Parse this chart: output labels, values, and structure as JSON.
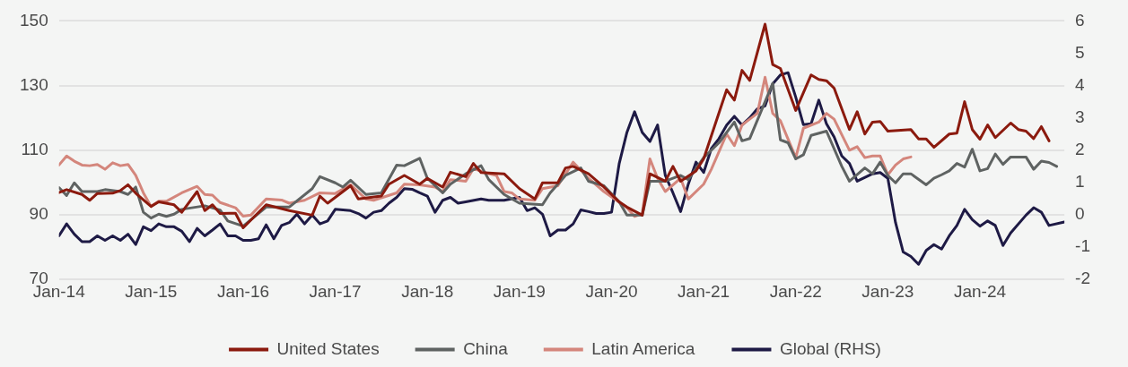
{
  "chart_data": {
    "type": "line",
    "xlim": [
      "2014-01",
      "2024-12"
    ],
    "xticks": [
      {
        "value": "2014-01",
        "label": "Jan-14"
      },
      {
        "value": "2015-01",
        "label": "Jan-15"
      },
      {
        "value": "2016-01",
        "label": "Jan-16"
      },
      {
        "value": "2017-01",
        "label": "Jan-17"
      },
      {
        "value": "2018-01",
        "label": "Jan-18"
      },
      {
        "value": "2019-01",
        "label": "Jan-19"
      },
      {
        "value": "2020-01",
        "label": "Jan-20"
      },
      {
        "value": "2021-01",
        "label": "Jan-21"
      },
      {
        "value": "2022-01",
        "label": "Jan-22"
      },
      {
        "value": "2023-01",
        "label": "Jan-23"
      },
      {
        "value": "2024-01",
        "label": "Jan-24"
      }
    ],
    "ylim": [
      70,
      150
    ],
    "yticks": [
      70,
      90,
      110,
      130,
      150
    ],
    "y2lim": [
      -2,
      6
    ],
    "y2ticks": [
      -2,
      -1,
      0,
      1,
      2,
      3,
      4,
      5,
      6
    ],
    "grid": "y",
    "legend": "bottom",
    "marker": "none",
    "line_style": "solid",
    "series": [
      {
        "name": "United States",
        "color": "#8b1a0e",
        "x": [
          "2014-01",
          "2014-02",
          "2014-04",
          "2014-05",
          "2014-06",
          "2014-08",
          "2014-09",
          "2014-10",
          "2014-11",
          "2015-01",
          "2015-02",
          "2015-04",
          "2015-05",
          "2015-07",
          "2015-08",
          "2015-09",
          "2015-10",
          "2015-12",
          "2016-01",
          "2016-04",
          "2016-07",
          "2016-10",
          "2016-11",
          "2016-12",
          "2017-03",
          "2017-04",
          "2017-07",
          "2017-08",
          "2017-10",
          "2017-12",
          "2018-01",
          "2018-03",
          "2018-04",
          "2018-06",
          "2018-07",
          "2018-08",
          "2018-11",
          "2019-01",
          "2019-03",
          "2019-04",
          "2019-06",
          "2019-07",
          "2019-08",
          "2019-10",
          "2019-12",
          "2020-02",
          "2020-03",
          "2020-05",
          "2020-06",
          "2020-08",
          "2020-09",
          "2020-10",
          "2020-12",
          "2021-01",
          "2021-04",
          "2021-05",
          "2021-06",
          "2021-07",
          "2021-09",
          "2021-10",
          "2021-11",
          "2022-01",
          "2022-03",
          "2022-04",
          "2022-05",
          "2022-06",
          "2022-08",
          "2022-09",
          "2022-10",
          "2022-11",
          "2022-12",
          "2023-01",
          "2023-04",
          "2023-05",
          "2023-06",
          "2023-07",
          "2023-09",
          "2023-10",
          "2023-11",
          "2023-12",
          "2024-01",
          "2024-02",
          "2024-03",
          "2024-05",
          "2024-06",
          "2024-07",
          "2024-08",
          "2024-09",
          "2024-10"
        ],
        "values": [
          96.9,
          97.8,
          96.3,
          94.5,
          96.6,
          96.7,
          97.5,
          99.3,
          96.7,
          92.6,
          94,
          93.1,
          90.8,
          97.2,
          91.3,
          93.1,
          90.4,
          90.5,
          86,
          93.1,
          91.3,
          89.9,
          95.8,
          93.6,
          99,
          94.9,
          95.8,
          99.5,
          102.2,
          99.5,
          101.3,
          98.6,
          103.2,
          101.8,
          105.9,
          103.1,
          102.7,
          98.1,
          94.9,
          99.9,
          99.9,
          104.5,
          105,
          102.7,
          98.6,
          94,
          92.4,
          89.9,
          102.7,
          100.4,
          105,
          100.4,
          103.6,
          107.3,
          128.7,
          125.5,
          134.7,
          131.6,
          149,
          136.5,
          135.3,
          122.3,
          133.3,
          131.9,
          131.5,
          129.2,
          116.4,
          121.9,
          115,
          118.7,
          118.9,
          115.9,
          116.4,
          113.5,
          113.5,
          110.9,
          115,
          115.3,
          125,
          116.4,
          113.4,
          117.8,
          113.9,
          118.4,
          116.4,
          115.9,
          113.6,
          117.3,
          112.9
        ]
      },
      {
        "name": "China",
        "color": "#5f6362",
        "x": [
          "2014-01",
          "2014-02",
          "2014-03",
          "2014-04",
          "2014-06",
          "2014-07",
          "2014-09",
          "2014-10",
          "2014-11",
          "2014-12",
          "2015-01",
          "2015-02",
          "2015-03",
          "2015-04",
          "2015-05",
          "2015-08",
          "2015-10",
          "2015-11",
          "2016-01",
          "2016-04",
          "2016-07",
          "2016-10",
          "2016-11",
          "2017-01",
          "2017-02",
          "2017-03",
          "2017-05",
          "2017-07",
          "2017-09",
          "2017-10",
          "2017-12",
          "2018-01",
          "2018-03",
          "2018-04",
          "2018-06",
          "2018-08",
          "2018-09",
          "2018-11",
          "2019-01",
          "2019-04",
          "2019-05",
          "2019-07",
          "2019-09",
          "2019-10",
          "2019-12",
          "2020-02",
          "2020-03",
          "2020-05",
          "2020-06",
          "2020-08",
          "2020-10",
          "2020-11",
          "2021-01",
          "2021-03",
          "2021-05",
          "2021-06",
          "2021-07",
          "2021-10",
          "2021-11",
          "2021-12",
          "2022-01",
          "2022-02",
          "2022-03",
          "2022-05",
          "2022-07",
          "2022-08",
          "2022-10",
          "2022-11",
          "2022-12",
          "2023-01",
          "2023-02",
          "2023-03",
          "2023-04",
          "2023-06",
          "2023-07",
          "2023-08",
          "2023-09",
          "2023-10",
          "2023-11",
          "2023-12",
          "2024-01",
          "2024-02",
          "2024-03",
          "2024-04",
          "2024-05",
          "2024-07",
          "2024-08",
          "2024-09",
          "2024-10",
          "2024-11"
        ],
        "values": [
          98.4,
          96,
          99.9,
          97.2,
          97.2,
          97.8,
          97.2,
          96.3,
          98.6,
          90.8,
          89,
          90.2,
          89.5,
          90.2,
          91.7,
          92.8,
          91.5,
          88.1,
          86.5,
          92.4,
          92.4,
          98.1,
          101.8,
          99.9,
          98.6,
          100.7,
          96.3,
          96.8,
          105.4,
          105.2,
          107.5,
          101.3,
          96.8,
          99.5,
          102.7,
          105.2,
          100.9,
          96.3,
          93.6,
          93.1,
          96.8,
          102.2,
          104.5,
          100.4,
          99,
          94,
          89.9,
          89.9,
          100.4,
          100.4,
          102.2,
          100.9,
          107.7,
          112.3,
          118.7,
          112.9,
          113.6,
          130.7,
          113.2,
          112.3,
          107.3,
          108.6,
          114.6,
          115.9,
          105,
          100.4,
          104.5,
          102.7,
          106.3,
          102.2,
          99.9,
          102.7,
          102.7,
          99.3,
          101.3,
          102.4,
          103.6,
          105.9,
          104.8,
          110.3,
          103.6,
          104.3,
          108.8,
          105.6,
          107.9,
          107.9,
          104.1,
          106.6,
          106.2,
          105
        ]
      },
      {
        "name": "Latin America",
        "color": "#d4867c",
        "x": [
          "2014-01",
          "2014-02",
          "2014-03",
          "2014-04",
          "2014-05",
          "2014-06",
          "2014-07",
          "2014-08",
          "2014-09",
          "2014-10",
          "2014-11",
          "2014-12",
          "2015-01",
          "2015-02",
          "2015-03",
          "2015-05",
          "2015-07",
          "2015-08",
          "2015-09",
          "2015-10",
          "2015-12",
          "2016-01",
          "2016-02",
          "2016-04",
          "2016-06",
          "2016-07",
          "2016-09",
          "2016-11",
          "2017-01",
          "2017-03",
          "2017-05",
          "2017-06",
          "2017-09",
          "2017-10",
          "2017-12",
          "2018-02",
          "2018-03",
          "2018-04",
          "2018-06",
          "2018-07",
          "2018-09",
          "2018-10",
          "2018-11",
          "2018-12",
          "2019-01",
          "2019-03",
          "2019-04",
          "2019-06",
          "2019-08",
          "2019-10",
          "2019-12",
          "2020-03",
          "2020-04",
          "2020-05",
          "2020-06",
          "2020-07",
          "2020-08",
          "2020-10",
          "2020-11",
          "2021-01",
          "2021-02",
          "2021-04",
          "2021-05",
          "2021-06",
          "2021-08",
          "2021-09",
          "2021-10",
          "2021-11",
          "2022-01",
          "2022-02",
          "2022-04",
          "2022-05",
          "2022-06",
          "2022-08",
          "2022-09",
          "2022-10",
          "2022-11",
          "2022-12",
          "2023-01",
          "2023-02",
          "2023-03",
          "2023-04"
        ],
        "values": [
          105.4,
          108.2,
          106.6,
          105.4,
          105.2,
          105.6,
          104.1,
          106.1,
          105.2,
          105.6,
          102.2,
          96.8,
          92.6,
          94.2,
          94.2,
          96.8,
          98.8,
          96.3,
          96.1,
          93.8,
          92.2,
          89.6,
          89.9,
          94.9,
          94.6,
          93.6,
          94.5,
          96.8,
          96.6,
          99.3,
          94.9,
          94.5,
          96.8,
          99.5,
          99.3,
          98.6,
          97.2,
          100.9,
          100.4,
          104.3,
          102.7,
          102.2,
          97.2,
          96.8,
          94.9,
          94.5,
          98.1,
          99,
          106.3,
          101.3,
          97.2,
          92.2,
          89.5,
          90.4,
          107.3,
          101.3,
          97.2,
          101.3,
          94.9,
          99.5,
          104.1,
          115,
          111.4,
          117.8,
          121.4,
          132.6,
          121.4,
          119.1,
          107.7,
          116.8,
          118.7,
          121.4,
          119.6,
          110,
          111.1,
          107.7,
          108.2,
          108.2,
          102.4,
          105.4,
          107.3,
          107.9
        ]
      },
      {
        "name": "Global (RHS)",
        "color": "#1e1a45",
        "axis": "y2",
        "x": [
          "2014-01",
          "2014-02",
          "2014-03",
          "2014-04",
          "2014-05",
          "2014-06",
          "2014-07",
          "2014-08",
          "2014-09",
          "2014-10",
          "2014-11",
          "2014-12",
          "2015-01",
          "2015-02",
          "2015-03",
          "2015-04",
          "2015-05",
          "2015-06",
          "2015-07",
          "2015-08",
          "2015-09",
          "2015-10",
          "2015-11",
          "2015-12",
          "2016-01",
          "2016-02",
          "2016-03",
          "2016-04",
          "2016-05",
          "2016-06",
          "2016-07",
          "2016-08",
          "2016-09",
          "2016-10",
          "2016-11",
          "2016-12",
          "2017-01",
          "2017-03",
          "2017-04",
          "2017-05",
          "2017-06",
          "2017-07",
          "2017-08",
          "2017-09",
          "2017-10",
          "2017-11",
          "2017-12",
          "2018-01",
          "2018-02",
          "2018-03",
          "2018-04",
          "2018-05",
          "2018-06",
          "2018-08",
          "2018-09",
          "2018-10",
          "2018-11",
          "2019-01",
          "2019-02",
          "2019-03",
          "2019-04",
          "2019-05",
          "2019-06",
          "2019-07",
          "2019-08",
          "2019-09",
          "2019-10",
          "2019-11",
          "2019-12",
          "2020-01",
          "2020-02",
          "2020-03",
          "2020-04",
          "2020-05",
          "2020-06",
          "2020-07",
          "2020-08",
          "2020-09",
          "2020-10",
          "2020-11",
          "2020-12",
          "2021-01",
          "2021-02",
          "2021-03",
          "2021-04",
          "2021-05",
          "2021-06",
          "2021-07",
          "2021-08",
          "2021-09",
          "2021-10",
          "2021-11",
          "2021-12",
          "2022-01",
          "2022-02",
          "2022-03",
          "2022-04",
          "2022-05",
          "2022-06",
          "2022-07",
          "2022-08",
          "2022-09",
          "2022-11",
          "2022-12",
          "2023-01",
          "2023-02",
          "2023-03",
          "2023-04",
          "2023-05",
          "2023-06",
          "2023-07",
          "2023-08",
          "2023-09",
          "2023-10",
          "2023-11",
          "2023-12",
          "2024-01",
          "2024-02",
          "2024-03",
          "2024-04",
          "2024-05",
          "2024-07",
          "2024-08",
          "2024-09",
          "2024-10",
          "2024-12"
        ],
        "values": [
          -0.65,
          -0.28,
          -0.6,
          -0.83,
          -0.83,
          -0.65,
          -0.79,
          -0.65,
          -0.79,
          -0.6,
          -0.92,
          -0.37,
          -0.49,
          -0.28,
          -0.37,
          -0.37,
          -0.51,
          -0.83,
          -0.42,
          -0.65,
          -0.47,
          -0.28,
          -0.65,
          -0.65,
          -0.79,
          -0.79,
          -0.74,
          -0.31,
          -0.74,
          -0.33,
          -0.24,
          0.02,
          -0.28,
          -0.01,
          -0.28,
          -0.19,
          0.17,
          0.13,
          0.04,
          -0.1,
          0.08,
          0.13,
          0.36,
          0.54,
          0.81,
          0.79,
          0.68,
          0.58,
          0.08,
          0.45,
          0.54,
          0.36,
          0.4,
          0.49,
          0.45,
          0.45,
          0.45,
          0.54,
          0.13,
          0.22,
          0.02,
          -0.65,
          -0.47,
          -0.47,
          -0.28,
          0.15,
          0.1,
          0.04,
          0.04,
          0.08,
          1.59,
          2.55,
          3.19,
          2.55,
          2.27,
          2.78,
          1.22,
          0.68,
          0.1,
          0.95,
          1.63,
          1.31,
          2.05,
          2.36,
          2.78,
          3.05,
          2.78,
          3.0,
          3.28,
          3.37,
          4.05,
          4.33,
          4.4,
          3.64,
          2.79,
          2.82,
          3.55,
          2.82,
          2.41,
          1.82,
          1.59,
          1.04,
          1.27,
          1.31,
          1.13,
          -0.24,
          -1.15,
          -1.29,
          -1.53,
          -1.1,
          -0.92,
          -1.06,
          -0.65,
          -0.33,
          0.17,
          -0.15,
          -0.35,
          -0.19,
          -0.33,
          -0.95,
          -0.56,
          -0.01,
          0.22,
          0.08,
          -0.33,
          -0.22
        ]
      }
    ]
  }
}
